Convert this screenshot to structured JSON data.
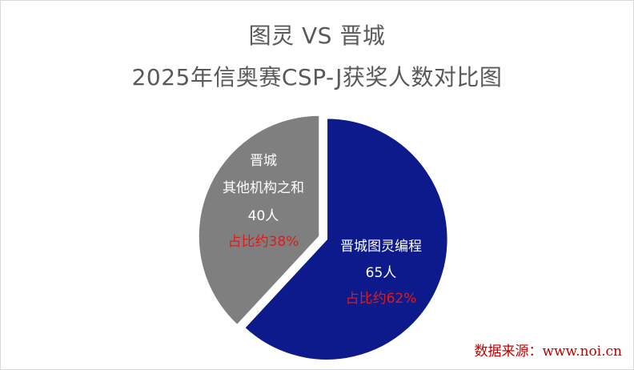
{
  "chart_data": {
    "type": "pie",
    "title": [
      "图灵 VS 晋城",
      "2025年信奥赛CSP-J获奖人数对比图"
    ],
    "slices": [
      {
        "label": "晋城图灵编程",
        "count_label": "65人",
        "share_label": "占比约62%",
        "value": 65,
        "color": "#0d1a8c",
        "exploded": true
      },
      {
        "label_lines": [
          "晋城",
          "其他机构之和"
        ],
        "count_label": "40人",
        "share_label": "占比约38%",
        "value": 40,
        "color": "#7f7f7f",
        "exploded": false
      }
    ],
    "label_color": "#ffffff",
    "share_color": "#e01a1a"
  },
  "source": "数据来源：www.noi.cn"
}
